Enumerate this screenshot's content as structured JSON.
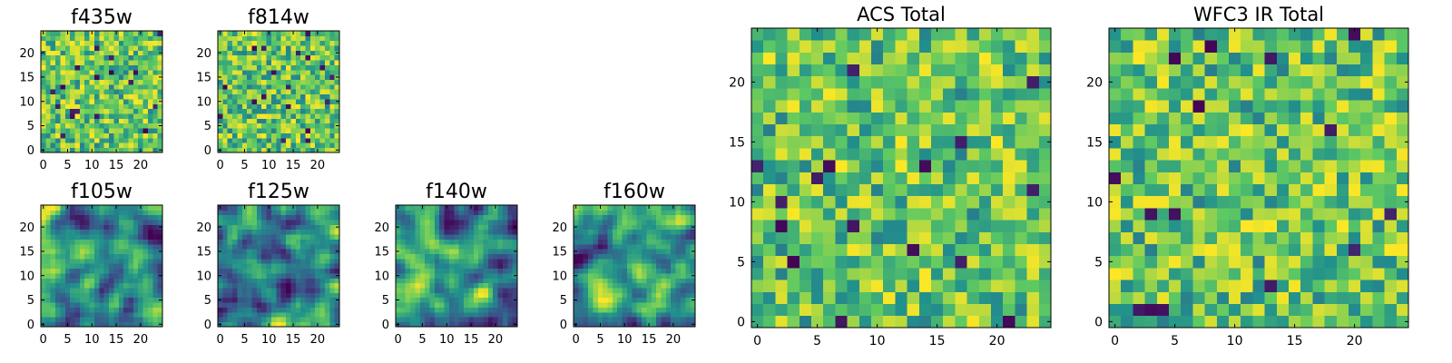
{
  "colormap": {
    "name": "viridis",
    "stops": [
      "#440154",
      "#3b528b",
      "#21918c",
      "#5ec962",
      "#fde725"
    ]
  },
  "chart_data": [
    {
      "type": "heatmap",
      "title": "f435w",
      "shape": [
        25,
        25
      ],
      "xlim": [
        0,
        24
      ],
      "ylim": [
        0,
        24
      ],
      "xticks": [
        0,
        5,
        10,
        15,
        20
      ],
      "yticks": [
        0,
        5,
        10,
        15,
        20
      ],
      "xtick_labels": [
        "0",
        "5",
        "10",
        "15",
        "20"
      ],
      "ytick_labels": [
        "0",
        "5",
        "10",
        "15",
        "20"
      ],
      "pattern": "noise",
      "seed": 11
    },
    {
      "type": "heatmap",
      "title": "f814w",
      "shape": [
        25,
        25
      ],
      "xlim": [
        0,
        24
      ],
      "ylim": [
        0,
        24
      ],
      "xticks": [
        0,
        5,
        10,
        15,
        20
      ],
      "yticks": [
        0,
        5,
        10,
        15,
        20
      ],
      "xtick_labels": [
        "0",
        "5",
        "10",
        "15",
        "20"
      ],
      "ytick_labels": [
        "0",
        "5",
        "10",
        "15",
        "20"
      ],
      "pattern": "noise",
      "seed": 23
    },
    {
      "type": "heatmap",
      "title": "f105w",
      "shape": [
        25,
        25
      ],
      "xlim": [
        0,
        24
      ],
      "ylim": [
        0,
        24
      ],
      "xticks": [
        0,
        5,
        10,
        15,
        20
      ],
      "yticks": [
        0,
        5,
        10,
        15,
        20
      ],
      "xtick_labels": [
        "0",
        "5",
        "10",
        "15",
        "20"
      ],
      "ytick_labels": [
        "0",
        "5",
        "10",
        "15",
        "20"
      ],
      "pattern": "smooth",
      "seed": 37
    },
    {
      "type": "heatmap",
      "title": "f125w",
      "shape": [
        25,
        25
      ],
      "xlim": [
        0,
        24
      ],
      "ylim": [
        0,
        24
      ],
      "xticks": [
        0,
        5,
        10,
        15,
        20
      ],
      "yticks": [
        0,
        5,
        10,
        15,
        20
      ],
      "xtick_labels": [
        "0",
        "5",
        "10",
        "15",
        "20"
      ],
      "ytick_labels": [
        "0",
        "5",
        "10",
        "15",
        "20"
      ],
      "pattern": "smooth",
      "seed": 41
    },
    {
      "type": "heatmap",
      "title": "f140w",
      "shape": [
        25,
        25
      ],
      "xlim": [
        0,
        24
      ],
      "ylim": [
        0,
        24
      ],
      "xticks": [
        0,
        5,
        10,
        15,
        20
      ],
      "yticks": [
        0,
        5,
        10,
        15,
        20
      ],
      "xtick_labels": [
        "0",
        "5",
        "10",
        "15",
        "20"
      ],
      "ytick_labels": [
        "0",
        "5",
        "10",
        "15",
        "20"
      ],
      "pattern": "smooth",
      "seed": 53
    },
    {
      "type": "heatmap",
      "title": "f160w",
      "shape": [
        25,
        25
      ],
      "xlim": [
        0,
        24
      ],
      "ylim": [
        0,
        24
      ],
      "xticks": [
        0,
        5,
        10,
        15,
        20
      ],
      "yticks": [
        0,
        5,
        10,
        15,
        20
      ],
      "xtick_labels": [
        "0",
        "5",
        "10",
        "15",
        "20"
      ],
      "ytick_labels": [
        "0",
        "5",
        "10",
        "15",
        "20"
      ],
      "pattern": "smooth",
      "seed": 67
    },
    {
      "type": "heatmap",
      "title": "ACS Total",
      "shape": [
        25,
        25
      ],
      "xlim": [
        0,
        24
      ],
      "ylim": [
        0,
        24
      ],
      "xticks": [
        0,
        5,
        10,
        15,
        20
      ],
      "yticks": [
        0,
        5,
        10,
        15,
        20
      ],
      "xtick_labels": [
        "0",
        "5",
        "10",
        "15",
        "20"
      ],
      "ytick_labels": [
        "0",
        "5",
        "10",
        "15",
        "20"
      ],
      "pattern": "noise",
      "seed": 79
    },
    {
      "type": "heatmap",
      "title": "WFC3 IR Total",
      "shape": [
        25,
        25
      ],
      "xlim": [
        0,
        24
      ],
      "ylim": [
        0,
        24
      ],
      "xticks": [
        0,
        5,
        10,
        15,
        20
      ],
      "yticks": [
        0,
        5,
        10,
        15,
        20
      ],
      "xtick_labels": [
        "0",
        "5",
        "10",
        "15",
        "20"
      ],
      "ytick_labels": [
        "0",
        "5",
        "10",
        "15",
        "20"
      ],
      "pattern": "noise",
      "seed": 97
    }
  ]
}
